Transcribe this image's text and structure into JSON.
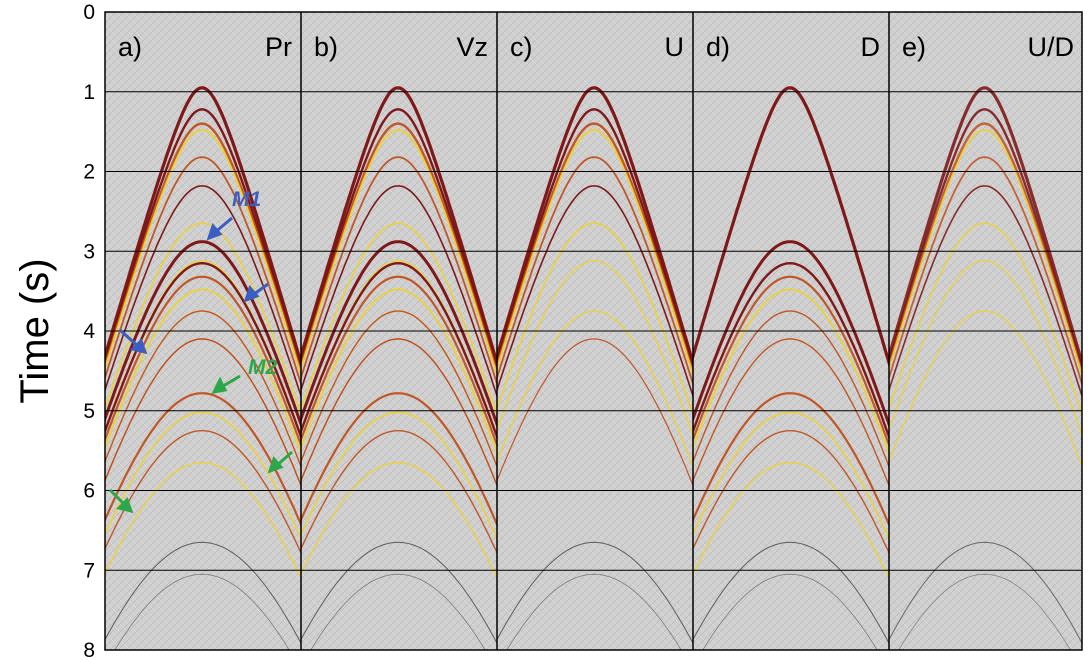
{
  "axis": {
    "ylabel": "Time (s)",
    "ticks": [
      "0",
      "1",
      "2",
      "3",
      "4",
      "5",
      "6",
      "7",
      "8"
    ],
    "ylim": [
      0,
      8
    ]
  },
  "panels": [
    {
      "letter": "a)",
      "name": "Pr"
    },
    {
      "letter": "b)",
      "name": "Vz"
    },
    {
      "letter": "c)",
      "name": "U"
    },
    {
      "letter": "d)",
      "name": "D"
    },
    {
      "letter": "e)",
      "name": "U/D"
    }
  ],
  "annotations": {
    "m1": {
      "label": "M1",
      "color": "#3b5ec2"
    },
    "m2": {
      "label": "M2",
      "color": "#2ea64a"
    }
  },
  "colors": {
    "background": "#cfcfcf",
    "event_dark": "#7a0f0f",
    "event_mid": "#c0501c",
    "event_light": "#f2d21a",
    "grid": "#000000"
  }
}
